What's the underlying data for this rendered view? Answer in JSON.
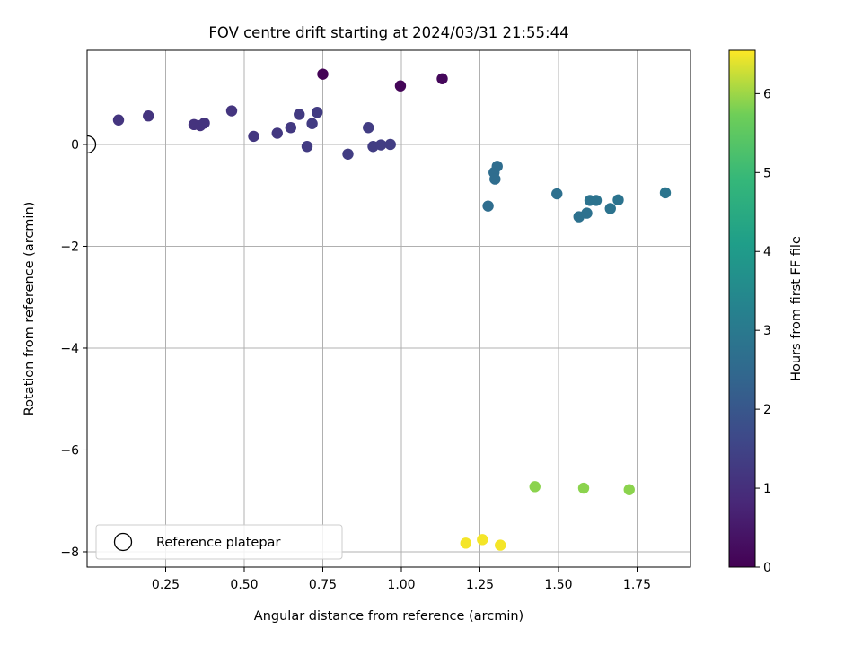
{
  "chart_data": {
    "type": "scatter",
    "title": "FOV centre drift starting at 2024/03/31 21:55:44",
    "xlabel": "Angular distance from reference (arcmin)",
    "ylabel": "Rotation from reference (arcmin)",
    "xlim": [
      0,
      1.92
    ],
    "ylim": [
      -8.3,
      1.85
    ],
    "xticks": [
      0.25,
      0.5,
      0.75,
      1.0,
      1.25,
      1.5,
      1.75
    ],
    "xtick_labels": [
      "0.25",
      "0.50",
      "0.75",
      "1.00",
      "1.25",
      "1.50",
      "1.75"
    ],
    "yticks": [
      0,
      -2,
      -4,
      -6,
      -8
    ],
    "ytick_labels": [
      "0",
      "−2",
      "−4",
      "−6",
      "−8"
    ],
    "grid": true,
    "legend": {
      "position": "lower-left",
      "entries": [
        "Reference platepar"
      ]
    },
    "reference_point": {
      "x": 0,
      "y": 0,
      "label": "Reference platepar"
    },
    "colorbar": {
      "label": "Hours from first FF file",
      "colormap": "viridis",
      "range": [
        0,
        6.55
      ],
      "ticks": [
        0,
        1,
        2,
        3,
        4,
        5,
        6
      ],
      "tick_labels": [
        "0",
        "1",
        "2",
        "3",
        "4",
        "5",
        "6"
      ]
    },
    "points": [
      {
        "x": 0.75,
        "y": 1.38,
        "h": 0.05
      },
      {
        "x": 0.997,
        "y": 1.15,
        "h": 0.1
      },
      {
        "x": 1.13,
        "y": 1.29,
        "h": 0.15
      },
      {
        "x": 0.1,
        "y": 0.48,
        "h": 1.15
      },
      {
        "x": 0.195,
        "y": 0.56,
        "h": 1.12
      },
      {
        "x": 0.34,
        "y": 0.39,
        "h": 1.1
      },
      {
        "x": 0.36,
        "y": 0.37,
        "h": 1.1
      },
      {
        "x": 0.373,
        "y": 0.42,
        "h": 1.12
      },
      {
        "x": 0.46,
        "y": 0.66,
        "h": 1.15
      },
      {
        "x": 0.53,
        "y": 0.16,
        "h": 1.2
      },
      {
        "x": 0.605,
        "y": 0.22,
        "h": 1.22
      },
      {
        "x": 0.648,
        "y": 0.33,
        "h": 1.25
      },
      {
        "x": 0.675,
        "y": 0.59,
        "h": 1.27
      },
      {
        "x": 0.7,
        "y": -0.04,
        "h": 1.3
      },
      {
        "x": 0.716,
        "y": 0.41,
        "h": 1.3
      },
      {
        "x": 0.732,
        "y": 0.63,
        "h": 1.32
      },
      {
        "x": 0.83,
        "y": -0.19,
        "h": 1.35
      },
      {
        "x": 0.895,
        "y": 0.33,
        "h": 1.35
      },
      {
        "x": 0.91,
        "y": -0.04,
        "h": 1.35
      },
      {
        "x": 0.935,
        "y": -0.01,
        "h": 1.35
      },
      {
        "x": 0.965,
        "y": 0.0,
        "h": 1.35
      },
      {
        "x": 1.276,
        "y": -1.21,
        "h": 2.6
      },
      {
        "x": 1.295,
        "y": -0.55,
        "h": 2.6
      },
      {
        "x": 1.298,
        "y": -0.68,
        "h": 2.6
      },
      {
        "x": 1.305,
        "y": -0.43,
        "h": 2.6
      },
      {
        "x": 1.495,
        "y": -0.97,
        "h": 2.7
      },
      {
        "x": 1.565,
        "y": -1.42,
        "h": 2.75
      },
      {
        "x": 1.59,
        "y": -1.35,
        "h": 2.75
      },
      {
        "x": 1.6,
        "y": -1.1,
        "h": 2.8
      },
      {
        "x": 1.62,
        "y": -1.1,
        "h": 2.8
      },
      {
        "x": 1.665,
        "y": -1.26,
        "h": 2.8
      },
      {
        "x": 1.69,
        "y": -1.09,
        "h": 2.8
      },
      {
        "x": 1.84,
        "y": -0.95,
        "h": 2.85
      },
      {
        "x": 1.425,
        "y": -6.72,
        "h": 5.9
      },
      {
        "x": 1.58,
        "y": -6.75,
        "h": 5.9
      },
      {
        "x": 1.725,
        "y": -6.78,
        "h": 5.9
      },
      {
        "x": 1.205,
        "y": -7.83,
        "h": 6.5
      },
      {
        "x": 1.258,
        "y": -7.76,
        "h": 6.5
      },
      {
        "x": 1.315,
        "y": -7.87,
        "h": 6.5
      }
    ]
  }
}
